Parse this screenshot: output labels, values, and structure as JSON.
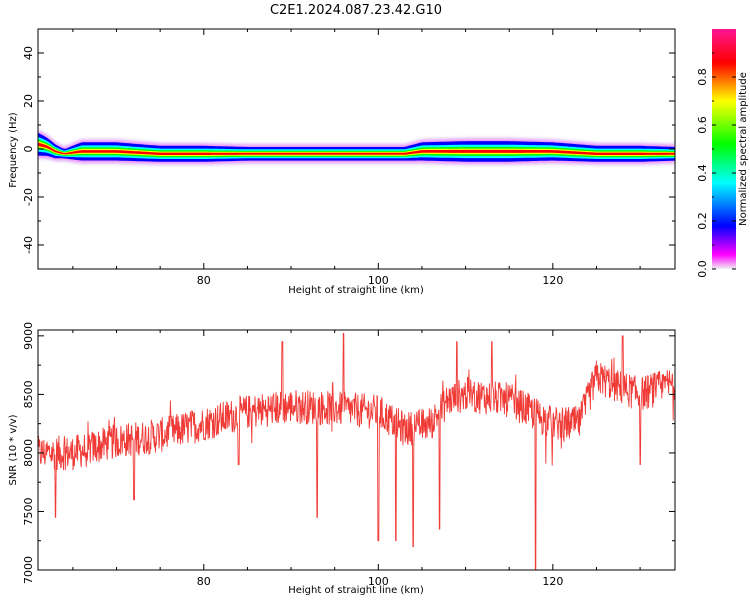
{
  "title": "C2E1.2024.087.23.42.G10",
  "colors": {
    "snr_line": "#f03a36",
    "frame": "#000000",
    "background": "#ffffff"
  },
  "chart_data": [
    {
      "type": "heatmap",
      "xlabel": "Height of straight line (km)",
      "ylabel": "Frequency (Hz)",
      "xlim": [
        61,
        134
      ],
      "ylim": [
        -50,
        50
      ],
      "xticks": [
        80,
        100,
        120
      ],
      "yticks": [
        -40,
        -20,
        0,
        20,
        40
      ],
      "colorbar": {
        "label": "Normalized spectral amplitude",
        "range": [
          0,
          1
        ],
        "ticks": [
          "0.0",
          "0.2",
          "0.4",
          "0.6",
          "0.8"
        ],
        "colormap": [
          "#f0f0f0",
          "#ff00ff",
          "#0000ff",
          "#00ffff",
          "#00ff00",
          "#ffff00",
          "#ff0000",
          "#ff1493"
        ]
      },
      "ridge": {
        "x": [
          61,
          62,
          63,
          64,
          66,
          70,
          75,
          80,
          85,
          90,
          95,
          100,
          103,
          105,
          110,
          115,
          120,
          125,
          130,
          134
        ],
        "center_hz": [
          2,
          1,
          -1,
          -2,
          -1,
          -1,
          -2,
          -2,
          -2,
          -2,
          -2,
          -2,
          -2,
          -1,
          -1,
          -1,
          -1,
          -2,
          -2,
          -2
        ],
        "halfwidth_hz": [
          5,
          4,
          3,
          2,
          4,
          4,
          3.5,
          3.5,
          3,
          3,
          3,
          3,
          3,
          4,
          4.5,
          4.5,
          4,
          3.5,
          3.5,
          3
        ]
      }
    },
    {
      "type": "line",
      "xlabel": "Height of straight line (km)",
      "ylabel": "SNR (10 * v/v)",
      "xlim": [
        61,
        134
      ],
      "ylim": [
        7000,
        9050
      ],
      "xticks": [
        80,
        100,
        120
      ],
      "yticks": [
        7000,
        7500,
        8000,
        8500,
        9000
      ],
      "trend": {
        "x": [
          61,
          65,
          70,
          75,
          80,
          85,
          90,
          95,
          100,
          103,
          106,
          108,
          110,
          115,
          120,
          123,
          125,
          128,
          130,
          134
        ],
        "y": [
          8000,
          8000,
          8100,
          8150,
          8250,
          8350,
          8400,
          8380,
          8350,
          8200,
          8250,
          8450,
          8500,
          8450,
          8250,
          8250,
          8650,
          8550,
          8500,
          8600
        ]
      },
      "noise_amplitude": 150,
      "spikes": [
        {
          "x": 63,
          "y": 7450
        },
        {
          "x": 72,
          "y": 7600
        },
        {
          "x": 84,
          "y": 7900
        },
        {
          "x": 89,
          "y": 8950
        },
        {
          "x": 93,
          "y": 7450
        },
        {
          "x": 96,
          "y": 9020
        },
        {
          "x": 100,
          "y": 7250
        },
        {
          "x": 102,
          "y": 7250
        },
        {
          "x": 104,
          "y": 7200
        },
        {
          "x": 107,
          "y": 7350
        },
        {
          "x": 109,
          "y": 8950
        },
        {
          "x": 113,
          "y": 8950
        },
        {
          "x": 118,
          "y": 7000
        },
        {
          "x": 128,
          "y": 9000
        },
        {
          "x": 130,
          "y": 7900
        }
      ]
    }
  ]
}
